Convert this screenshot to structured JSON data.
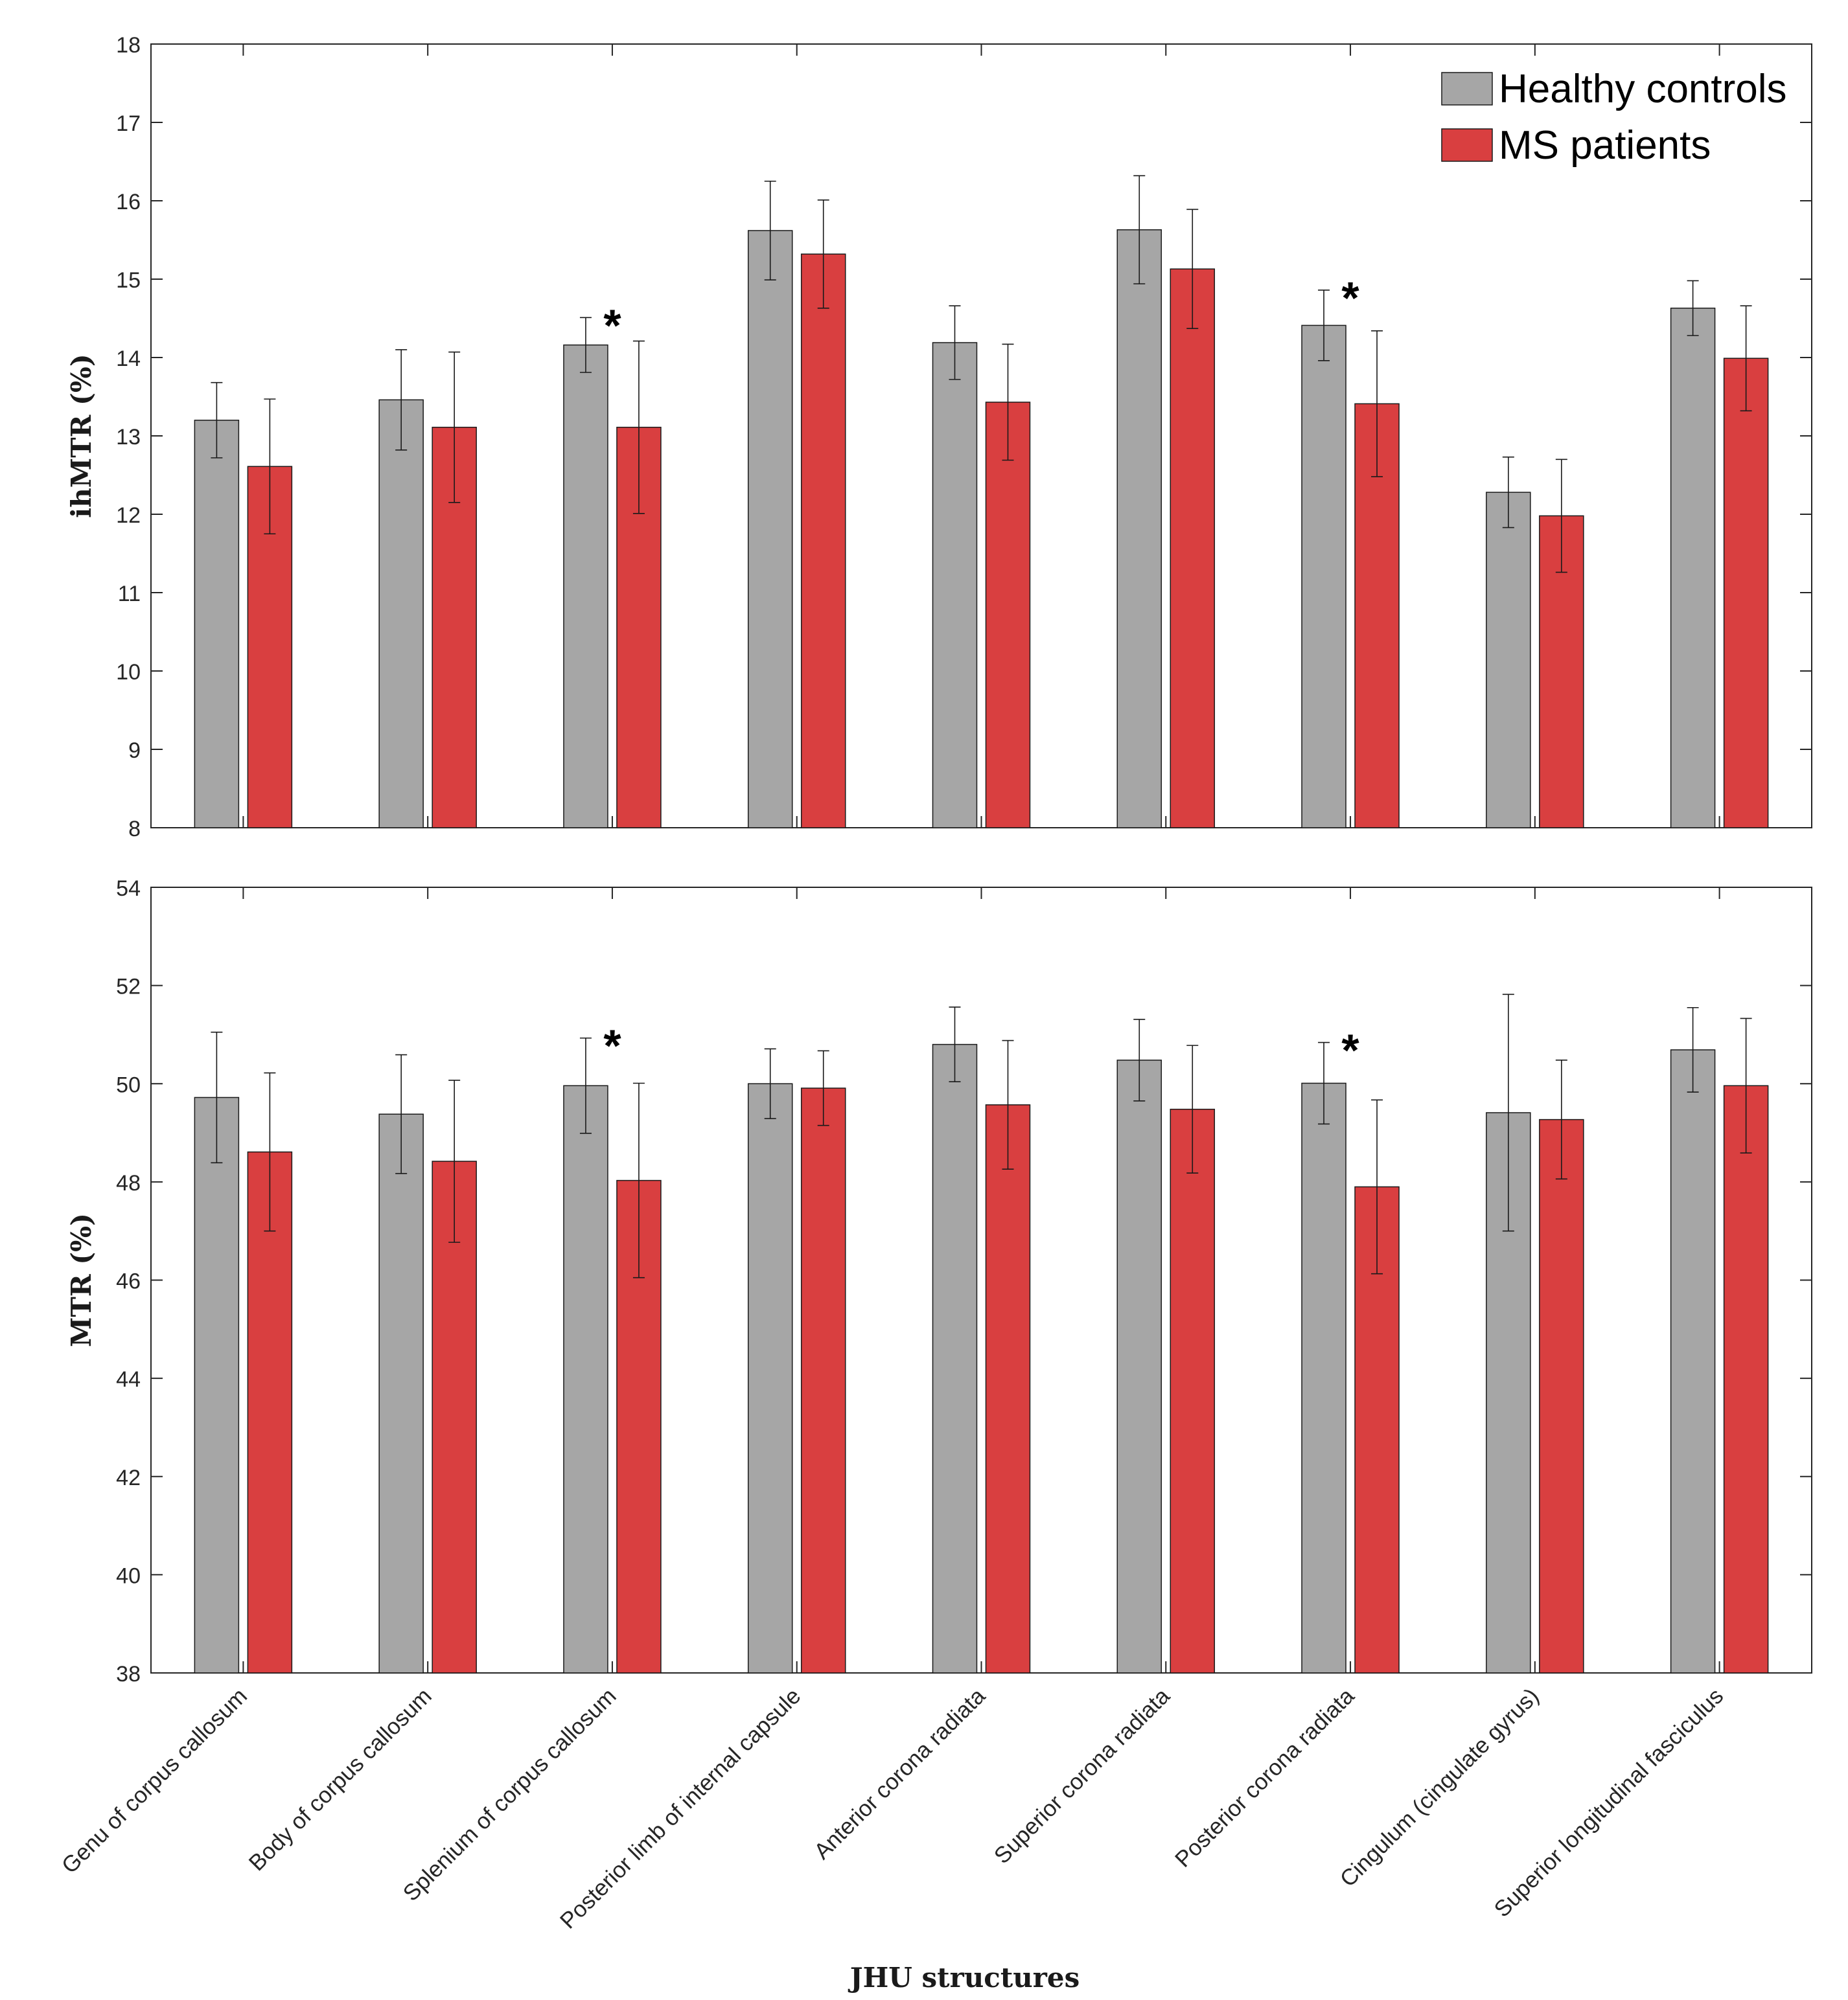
{
  "chart_data": {
    "type": "bar",
    "categories": [
      "Genu of corpus callosum",
      "Body of corpus callosum",
      "Splenium of corpus callosum",
      "Posterior limb of internal capsule",
      "Anterior corona radiata",
      "Superior corona radiata",
      "Posterior corona radiata",
      "Cingulum (cingulate gyrus)",
      "Superior longitudinal fasciculus"
    ],
    "xlabel": "JHU structures",
    "legend": {
      "placement": "top-right",
      "entries": [
        "Healthy controls",
        "MS patients"
      ]
    },
    "colors": {
      "healthy": "#a6a6a6",
      "ms": "#d93f40",
      "axis": "#262626"
    },
    "significance_marker": "*",
    "panels": [
      {
        "ylabel": "ihMTR (%)",
        "ylim": [
          8,
          18
        ],
        "yticks": [
          8,
          9,
          10,
          11,
          12,
          13,
          14,
          15,
          16,
          17,
          18
        ],
        "grid": false,
        "series": [
          {
            "name": "Healthy controls",
            "values": [
              13.2,
              13.46,
              14.16,
              15.62,
              14.19,
              15.63,
              14.41,
              12.28,
              14.63
            ],
            "errors": [
              0.48,
              0.64,
              0.35,
              0.63,
              0.47,
              0.69,
              0.45,
              0.45,
              0.35
            ]
          },
          {
            "name": "MS patients",
            "values": [
              12.61,
              13.11,
              13.11,
              15.32,
              13.43,
              15.13,
              13.41,
              11.98,
              13.99
            ],
            "errors": [
              0.86,
              0.96,
              1.1,
              0.69,
              0.74,
              0.76,
              0.93,
              0.72,
              0.67
            ]
          }
        ],
        "significant": [
          2,
          6
        ]
      },
      {
        "ylabel": "MTR (%)",
        "ylim": [
          38,
          54
        ],
        "yticks": [
          38,
          40,
          42,
          44,
          46,
          48,
          50,
          52,
          54
        ],
        "grid": false,
        "series": [
          {
            "name": "Healthy controls",
            "values": [
              49.72,
              49.38,
              49.96,
              50.0,
              50.8,
              50.48,
              50.01,
              49.41,
              50.69
            ],
            "errors": [
              1.33,
              1.21,
              0.97,
              0.71,
              0.76,
              0.83,
              0.83,
              2.41,
              0.86
            ]
          },
          {
            "name": "MS patients",
            "values": [
              48.61,
              48.42,
              48.03,
              49.91,
              49.57,
              49.48,
              47.9,
              49.27,
              49.96
            ],
            "errors": [
              1.61,
              1.65,
              1.98,
              0.76,
              1.31,
              1.3,
              1.77,
              1.21,
              1.37
            ]
          }
        ],
        "significant": [
          2,
          6
        ]
      }
    ]
  }
}
